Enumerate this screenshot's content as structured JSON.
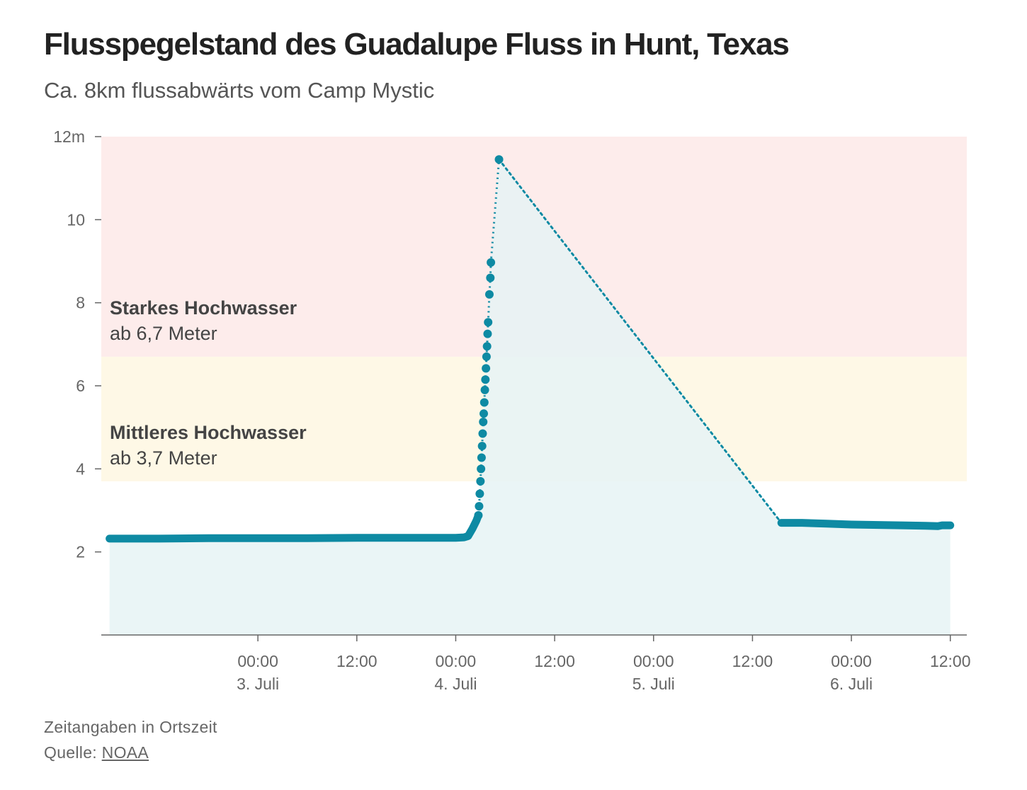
{
  "header": {
    "title": "Flusspegelstand des Guadalupe Fluss in Hunt, Texas",
    "subtitle": "Ca. 8km flussabwärts vom Camp Mystic"
  },
  "footer": {
    "note": "Zeitangaben in Ortszeit",
    "source_label": "Quelle: ",
    "source_link": "NOAA"
  },
  "colors": {
    "series": "#0e8aa3",
    "area": "#e6f3f5",
    "zone_major": "#fdeceb",
    "zone_moderate": "#fef8e6",
    "axis": "#666666",
    "label_text": "#444444"
  },
  "chart_data": {
    "type": "line",
    "ylim": [
      0,
      12
    ],
    "y_ticks": [
      {
        "value": 2,
        "label": "2"
      },
      {
        "value": 4,
        "label": "4"
      },
      {
        "value": 6,
        "label": "6"
      },
      {
        "value": 8,
        "label": "8"
      },
      {
        "value": 10,
        "label": "10"
      },
      {
        "value": 12,
        "label": "12m"
      }
    ],
    "xlim": [
      "2025-07-02T05:00",
      "2025-07-06T14:00"
    ],
    "x_ticks": [
      {
        "value": "2025-07-03T00:00",
        "time": "00:00",
        "date": "3. Juli"
      },
      {
        "value": "2025-07-03T12:00",
        "time": "12:00",
        "date": ""
      },
      {
        "value": "2025-07-04T00:00",
        "time": "00:00",
        "date": "4. Juli"
      },
      {
        "value": "2025-07-04T12:00",
        "time": "12:00",
        "date": ""
      },
      {
        "value": "2025-07-05T00:00",
        "time": "00:00",
        "date": "5. Juli"
      },
      {
        "value": "2025-07-05T12:00",
        "time": "12:00",
        "date": ""
      },
      {
        "value": "2025-07-06T00:00",
        "time": "00:00",
        "date": "6. Juli"
      },
      {
        "value": "2025-07-06T12:00",
        "time": "12:00",
        "date": ""
      }
    ],
    "zones": [
      {
        "name": "Starkes Hochwasser",
        "sublabel": "ab 6,7 Meter",
        "from": 6.7,
        "to": 12
      },
      {
        "name": "Mittleres Hochwasser",
        "sublabel": "ab 3,7 Meter",
        "from": 3.7,
        "to": 6.7
      }
    ],
    "series": [
      {
        "segments": [
          {
            "style": "continuous",
            "points": [
              [
                "2025-07-02T06:00",
                2.32
              ],
              [
                "2025-07-02T12:00",
                2.32
              ],
              [
                "2025-07-02T18:00",
                2.33
              ],
              [
                "2025-07-03T00:00",
                2.33
              ],
              [
                "2025-07-03T06:00",
                2.33
              ],
              [
                "2025-07-03T12:00",
                2.34
              ],
              [
                "2025-07-03T18:00",
                2.34
              ],
              [
                "2025-07-04T00:00",
                2.34
              ],
              [
                "2025-07-04T01:00",
                2.35
              ],
              [
                "2025-07-04T01:30",
                2.38
              ],
              [
                "2025-07-04T02:00",
                2.55
              ],
              [
                "2025-07-04T02:30",
                2.75
              ],
              [
                "2025-07-04T02:45",
                2.88
              ]
            ]
          },
          {
            "style": "sampled",
            "points": [
              [
                "2025-07-04T02:45",
                2.88
              ],
              [
                "2025-07-04T02:50",
                3.1
              ],
              [
                "2025-07-04T02:55",
                3.4
              ],
              [
                "2025-07-04T03:00",
                3.7
              ],
              [
                "2025-07-04T03:04",
                4.0
              ],
              [
                "2025-07-04T03:08",
                4.27
              ],
              [
                "2025-07-04T03:12",
                4.55
              ],
              [
                "2025-07-04T03:16",
                4.85
              ],
              [
                "2025-07-04T03:20",
                5.13
              ],
              [
                "2025-07-04T03:24",
                5.33
              ],
              [
                "2025-07-04T03:28",
                5.6
              ],
              [
                "2025-07-04T03:32",
                5.9
              ],
              [
                "2025-07-04T03:36",
                6.15
              ],
              [
                "2025-07-04T03:40",
                6.42
              ],
              [
                "2025-07-04T03:44",
                6.7
              ],
              [
                "2025-07-04T03:48",
                6.95
              ],
              [
                "2025-07-04T03:52",
                7.25
              ],
              [
                "2025-07-04T03:56",
                7.53
              ],
              [
                "2025-07-04T04:05",
                8.2
              ],
              [
                "2025-07-04T04:12",
                8.6
              ],
              [
                "2025-07-04T04:16",
                8.97
              ],
              [
                "2025-07-04T05:15",
                11.45
              ]
            ]
          },
          {
            "style": "gap",
            "points": [
              [
                "2025-07-04T05:15",
                11.45
              ],
              [
                "2025-07-05T15:30",
                2.7
              ]
            ]
          },
          {
            "style": "continuous",
            "points": [
              [
                "2025-07-05T15:30",
                2.7
              ],
              [
                "2025-07-05T18:00",
                2.7
              ],
              [
                "2025-07-05T21:00",
                2.68
              ],
              [
                "2025-07-06T00:00",
                2.66
              ],
              [
                "2025-07-06T06:00",
                2.64
              ],
              [
                "2025-07-06T09:00",
                2.63
              ],
              [
                "2025-07-06T10:30",
                2.62
              ],
              [
                "2025-07-06T11:00",
                2.64
              ],
              [
                "2025-07-06T12:00",
                2.64
              ]
            ]
          }
        ]
      }
    ]
  }
}
